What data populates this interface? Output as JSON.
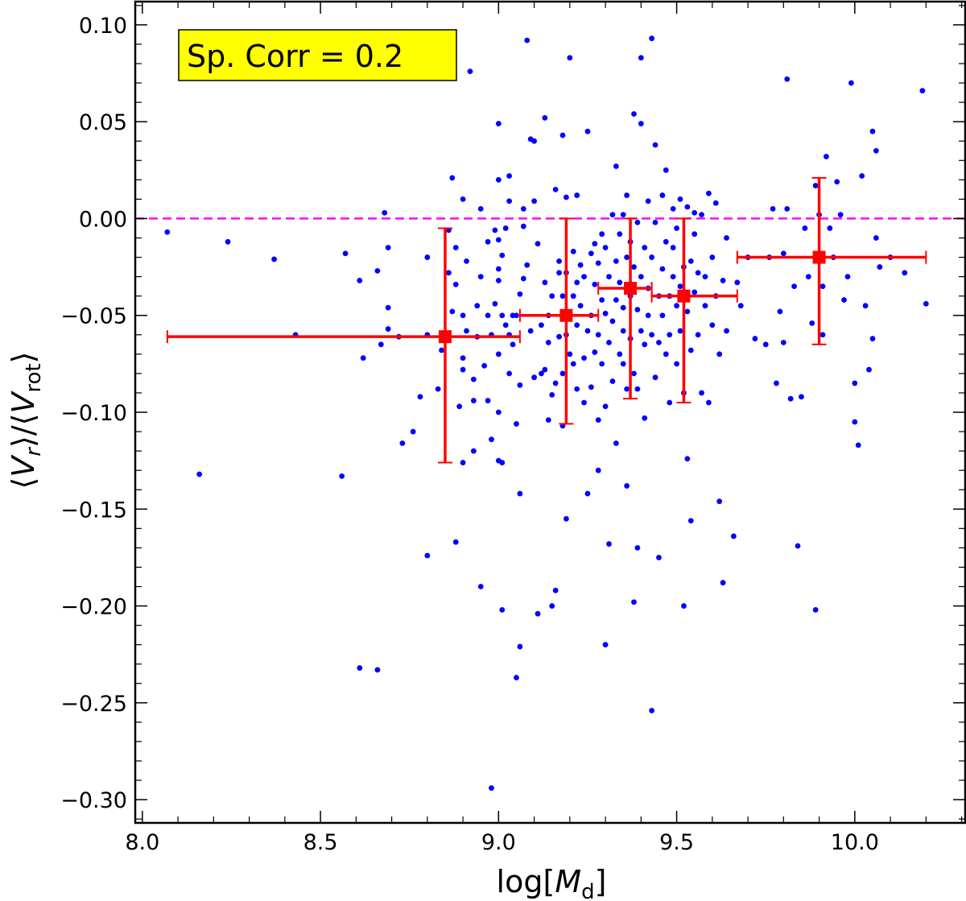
{
  "chart_data": {
    "type": "scatter",
    "xlabel_main": "log[",
    "xlabel_var": "M",
    "xlabel_sub": "d",
    "xlabel_end": "]",
    "ylabel_open": "⟨",
    "ylabel_var1": "V",
    "ylabel_sub1": "r",
    "ylabel_mid": "⟩/⟨",
    "ylabel_var2": "V",
    "ylabel_sub2": "rot",
    "ylabel_close": "⟩",
    "xlim": [
      7.98,
      10.31
    ],
    "ylim": [
      -0.312,
      0.112
    ],
    "xticks": [
      {
        "value": 8.0,
        "label": "8.0"
      },
      {
        "value": 8.5,
        "label": "8.5"
      },
      {
        "value": 9.0,
        "label": "9.0"
      },
      {
        "value": 9.5,
        "label": "9.5"
      },
      {
        "value": 10.0,
        "label": "10.0"
      }
    ],
    "yticks": [
      {
        "value": 0.1,
        "label": "0.10"
      },
      {
        "value": 0.05,
        "label": "0.05"
      },
      {
        "value": 0.0,
        "label": "0.00"
      },
      {
        "value": -0.05,
        "label": "−0.05"
      },
      {
        "value": -0.1,
        "label": "−0.10"
      },
      {
        "value": -0.15,
        "label": "−0.15"
      },
      {
        "value": -0.2,
        "label": "−0.20"
      },
      {
        "value": -0.25,
        "label": "−0.25"
      },
      {
        "value": -0.3,
        "label": "−0.30"
      }
    ],
    "annotation": "Sp. Corr = 0.2",
    "reference_line": {
      "y": 0.0,
      "color": "#ff00ff",
      "style": "dashed"
    },
    "colors": {
      "points": "#0000ff",
      "binned": "#ff0000",
      "annotation_bg": "#ffff00"
    },
    "binned": [
      {
        "x": 8.85,
        "y": -0.061,
        "xerr_low": 8.07,
        "xerr_high": 9.06,
        "yerr_low": -0.126,
        "yerr_high": -0.005
      },
      {
        "x": 9.19,
        "y": -0.05,
        "xerr_low": 9.06,
        "xerr_high": 9.28,
        "yerr_low": -0.106,
        "yerr_high": 0.0
      },
      {
        "x": 9.37,
        "y": -0.036,
        "xerr_low": 9.28,
        "xerr_high": 9.43,
        "yerr_low": -0.093,
        "yerr_high": 0.0
      },
      {
        "x": 9.52,
        "y": -0.04,
        "xerr_low": 9.43,
        "xerr_high": 9.67,
        "yerr_low": -0.095,
        "yerr_high": 0.0
      },
      {
        "x": 9.9,
        "y": -0.02,
        "xerr_low": 9.67,
        "xerr_high": 10.2,
        "yerr_low": -0.065,
        "yerr_high": 0.021
      }
    ],
    "points": [
      [
        8.07,
        -0.007
      ],
      [
        8.16,
        -0.132
      ],
      [
        8.24,
        -0.012
      ],
      [
        8.37,
        -0.021
      ],
      [
        8.43,
        -0.06
      ],
      [
        8.56,
        -0.133
      ],
      [
        8.57,
        -0.018
      ],
      [
        8.61,
        -0.032
      ],
      [
        8.61,
        -0.232
      ],
      [
        8.62,
        -0.072
      ],
      [
        8.66,
        -0.233
      ],
      [
        8.66,
        -0.027
      ],
      [
        8.67,
        -0.065
      ],
      [
        8.68,
        0.003
      ],
      [
        8.69,
        -0.015
      ],
      [
        8.69,
        -0.057
      ],
      [
        8.69,
        -0.046
      ],
      [
        8.72,
        -0.061
      ],
      [
        8.73,
        -0.116
      ],
      [
        8.76,
        -0.11
      ],
      [
        8.78,
        -0.092
      ],
      [
        8.8,
        -0.06
      ],
      [
        8.8,
        -0.174
      ],
      [
        8.8,
        -0.02
      ],
      [
        8.83,
        -0.088
      ],
      [
        8.84,
        -0.068
      ],
      [
        8.86,
        -0.006
      ],
      [
        8.86,
        -0.028
      ],
      [
        8.87,
        0.021
      ],
      [
        8.87,
        -0.048
      ],
      [
        8.88,
        -0.015
      ],
      [
        8.88,
        -0.034
      ],
      [
        8.88,
        -0.167
      ],
      [
        8.89,
        -0.097
      ],
      [
        8.9,
        -0.078
      ],
      [
        8.9,
        -0.072
      ],
      [
        8.9,
        -0.126
      ],
      [
        8.9,
        -0.05
      ],
      [
        8.9,
        0.01
      ],
      [
        8.91,
        -0.058
      ],
      [
        8.91,
        -0.022
      ],
      [
        8.92,
        0.076
      ],
      [
        8.93,
        -0.083
      ],
      [
        8.93,
        -0.094
      ],
      [
        8.93,
        -0.12
      ],
      [
        8.94,
        -0.045
      ],
      [
        8.94,
        -0.061
      ],
      [
        8.95,
        0.005
      ],
      [
        8.95,
        -0.03
      ],
      [
        8.95,
        -0.19
      ],
      [
        8.96,
        -0.076
      ],
      [
        8.97,
        -0.012
      ],
      [
        8.97,
        -0.094
      ],
      [
        8.97,
        -0.05
      ],
      [
        8.98,
        -0.294
      ],
      [
        8.98,
        -0.114
      ],
      [
        8.98,
        -0.06
      ],
      [
        8.99,
        -0.006
      ],
      [
        8.99,
        -0.044
      ],
      [
        9.0,
        -0.032
      ],
      [
        9.0,
        -0.011
      ],
      [
        9.0,
        -0.026
      ],
      [
        9.0,
        -0.1
      ],
      [
        9.0,
        0.049
      ],
      [
        9.0,
        0.02
      ],
      [
        9.0,
        -0.07
      ],
      [
        9.0,
        -0.125
      ],
      [
        9.01,
        -0.202
      ],
      [
        9.01,
        -0.05
      ],
      [
        9.01,
        -0.019
      ],
      [
        9.01,
        -0.126
      ],
      [
        9.02,
        -0.005
      ],
      [
        9.02,
        -0.055
      ],
      [
        9.03,
        0.009
      ],
      [
        9.03,
        -0.08
      ],
      [
        9.03,
        -0.06
      ],
      [
        9.03,
        0.022
      ],
      [
        9.04,
        -0.05
      ],
      [
        9.04,
        -0.065
      ],
      [
        9.05,
        -0.106
      ],
      [
        9.05,
        -0.237
      ],
      [
        9.05,
        -0.05
      ],
      [
        9.06,
        -0.221
      ],
      [
        9.06,
        -0.142
      ],
      [
        9.06,
        -0.086
      ],
      [
        9.06,
        -0.039
      ],
      [
        9.07,
        0.005
      ],
      [
        9.07,
        -0.004
      ],
      [
        9.07,
        -0.031
      ],
      [
        9.08,
        0.092
      ],
      [
        9.08,
        -0.024
      ],
      [
        9.09,
        0.041
      ],
      [
        9.09,
        -0.058
      ],
      [
        9.1,
        0.04
      ],
      [
        9.1,
        0.009
      ],
      [
        9.1,
        -0.082
      ],
      [
        9.11,
        -0.204
      ],
      [
        9.11,
        -0.013
      ],
      [
        9.12,
        -0.055
      ],
      [
        9.12,
        -0.08
      ],
      [
        9.13,
        0.052
      ],
      [
        9.13,
        -0.078
      ],
      [
        9.13,
        -0.033
      ],
      [
        9.14,
        -0.05
      ],
      [
        9.14,
        -0.064
      ],
      [
        9.14,
        -0.104
      ],
      [
        9.15,
        -0.091
      ],
      [
        9.15,
        -0.2
      ],
      [
        9.15,
        -0.04
      ],
      [
        9.16,
        0.015
      ],
      [
        9.16,
        -0.192
      ],
      [
        9.16,
        -0.085
      ],
      [
        9.17,
        -0.061
      ],
      [
        9.17,
        -0.022
      ],
      [
        9.17,
        -0.028
      ],
      [
        9.18,
        0.043
      ],
      [
        9.18,
        -0.107
      ],
      [
        9.18,
        -0.04
      ],
      [
        9.18,
        -0.08
      ],
      [
        9.19,
        0.011
      ],
      [
        9.19,
        -0.06
      ],
      [
        9.19,
        -0.028
      ],
      [
        9.19,
        -0.155
      ],
      [
        9.2,
        0.083
      ],
      [
        9.2,
        -0.07
      ],
      [
        9.21,
        -0.075
      ],
      [
        9.21,
        -0.04
      ],
      [
        9.21,
        -0.017
      ],
      [
        9.22,
        -0.033
      ],
      [
        9.22,
        -0.088
      ],
      [
        9.22,
        -0.055
      ],
      [
        9.22,
        0.012
      ],
      [
        9.23,
        -0.024
      ],
      [
        9.23,
        -0.045
      ],
      [
        9.24,
        -0.072
      ],
      [
        9.24,
        -0.03
      ],
      [
        9.24,
        -0.095
      ],
      [
        9.25,
        0.045
      ],
      [
        9.25,
        -0.142
      ],
      [
        9.25,
        -0.058
      ],
      [
        9.26,
        -0.018
      ],
      [
        9.26,
        -0.05
      ],
      [
        9.26,
        -0.087
      ],
      [
        9.27,
        -0.069
      ],
      [
        9.27,
        -0.034
      ],
      [
        9.27,
        -0.013
      ],
      [
        9.28,
        -0.06
      ],
      [
        9.28,
        -0.023
      ],
      [
        9.28,
        -0.104
      ],
      [
        9.28,
        -0.13
      ],
      [
        9.29,
        -0.042
      ],
      [
        9.29,
        -0.075
      ],
      [
        9.29,
        -0.008
      ],
      [
        9.3,
        -0.097
      ],
      [
        9.3,
        -0.049
      ],
      [
        9.3,
        -0.015
      ],
      [
        9.3,
        -0.22
      ],
      [
        9.31,
        -0.064
      ],
      [
        9.31,
        -0.03
      ],
      [
        9.31,
        -0.168
      ],
      [
        9.32,
        0.002
      ],
      [
        9.32,
        -0.084
      ],
      [
        9.32,
        -0.053
      ],
      [
        9.33,
        0.027
      ],
      [
        9.33,
        -0.022
      ],
      [
        9.33,
        -0.042
      ],
      [
        9.33,
        -0.116
      ],
      [
        9.34,
        -0.07
      ],
      [
        9.34,
        -0.008
      ],
      [
        9.34,
        -0.033
      ],
      [
        9.35,
        0.002
      ],
      [
        9.35,
        -0.058
      ],
      [
        9.35,
        -0.075
      ],
      [
        9.35,
        -0.046
      ],
      [
        9.36,
        0.012
      ],
      [
        9.36,
        -0.02
      ],
      [
        9.36,
        -0.088
      ],
      [
        9.36,
        -0.138
      ],
      [
        9.37,
        -0.04
      ],
      [
        9.37,
        -0.062
      ],
      [
        9.37,
        -0.012
      ],
      [
        9.38,
        0.054
      ],
      [
        9.38,
        -0.025
      ],
      [
        9.38,
        -0.08
      ],
      [
        9.38,
        -0.198
      ],
      [
        9.39,
        -0.002
      ],
      [
        9.39,
        -0.047
      ],
      [
        9.39,
        -0.17
      ],
      [
        9.39,
        -0.088
      ],
      [
        9.4,
        0.083
      ],
      [
        9.4,
        -0.03
      ],
      [
        9.4,
        -0.058
      ],
      [
        9.4,
        0.049
      ],
      [
        9.41,
        -0.015
      ],
      [
        9.41,
        -0.065
      ],
      [
        9.41,
        -0.103
      ],
      [
        9.42,
        0.009
      ],
      [
        9.42,
        -0.036
      ],
      [
        9.42,
        -0.05
      ],
      [
        9.43,
        0.093
      ],
      [
        9.43,
        -0.254
      ],
      [
        9.43,
        -0.06
      ],
      [
        9.43,
        -0.02
      ],
      [
        9.44,
        0.038
      ],
      [
        9.44,
        -0.082
      ],
      [
        9.44,
        -0.002
      ],
      [
        9.45,
        -0.064
      ],
      [
        9.45,
        -0.04
      ],
      [
        9.45,
        -0.175
      ],
      [
        9.46,
        0.012
      ],
      [
        9.46,
        -0.026
      ],
      [
        9.46,
        -0.05
      ],
      [
        9.47,
        0.025
      ],
      [
        9.47,
        -0.07
      ],
      [
        9.47,
        -0.012
      ],
      [
        9.48,
        -0.04
      ],
      [
        9.48,
        -0.095
      ],
      [
        9.48,
        -0.06
      ],
      [
        9.49,
        0.005
      ],
      [
        9.49,
        -0.03
      ],
      [
        9.49,
        -0.015
      ],
      [
        9.5,
        -0.045
      ],
      [
        9.5,
        -0.075
      ],
      [
        9.5,
        -0.005
      ],
      [
        9.51,
        0.01
      ],
      [
        9.51,
        -0.035
      ],
      [
        9.51,
        -0.058
      ],
      [
        9.52,
        -0.2
      ],
      [
        9.52,
        -0.025
      ],
      [
        9.52,
        -0.09
      ],
      [
        9.53,
        0.006
      ],
      [
        9.53,
        -0.124
      ],
      [
        9.53,
        -0.048
      ],
      [
        9.54,
        -0.068
      ],
      [
        9.54,
        -0.022
      ],
      [
        9.54,
        -0.156
      ],
      [
        9.55,
        0.003
      ],
      [
        9.55,
        -0.038
      ],
      [
        9.55,
        -0.008
      ],
      [
        9.56,
        -0.06
      ],
      [
        9.56,
        -0.028
      ],
      [
        9.57,
        -0.09
      ],
      [
        9.57,
        0.002
      ],
      [
        9.58,
        -0.045
      ],
      [
        9.58,
        -0.03
      ],
      [
        9.59,
        0.013
      ],
      [
        9.59,
        -0.095
      ],
      [
        9.6,
        -0.055
      ],
      [
        9.6,
        -0.02
      ],
      [
        9.61,
        0.008
      ],
      [
        9.61,
        -0.04
      ],
      [
        9.62,
        -0.07
      ],
      [
        9.62,
        -0.146
      ],
      [
        9.63,
        -0.188
      ],
      [
        9.63,
        -0.032
      ],
      [
        9.64,
        -0.058
      ],
      [
        9.64,
        -0.01
      ],
      [
        9.66,
        -0.164
      ],
      [
        9.67,
        -0.033
      ],
      [
        9.68,
        -0.045
      ],
      [
        9.7,
        -0.02
      ],
      [
        9.72,
        -0.062
      ],
      [
        9.75,
        -0.065
      ],
      [
        9.76,
        -0.02
      ],
      [
        9.77,
        0.005
      ],
      [
        9.78,
        -0.085
      ],
      [
        9.79,
        -0.048
      ],
      [
        9.8,
        -0.018
      ],
      [
        9.8,
        -0.064
      ],
      [
        9.81,
        0.005
      ],
      [
        9.81,
        0.072
      ],
      [
        9.82,
        -0.093
      ],
      [
        9.83,
        -0.035
      ],
      [
        9.84,
        -0.169
      ],
      [
        9.85,
        -0.092
      ],
      [
        9.86,
        -0.005
      ],
      [
        9.87,
        -0.03
      ],
      [
        9.88,
        -0.054
      ],
      [
        9.89,
        0.017
      ],
      [
        9.89,
        -0.202
      ],
      [
        9.9,
        0.002
      ],
      [
        9.9,
        -0.018
      ],
      [
        9.91,
        -0.035
      ],
      [
        9.91,
        -0.06
      ],
      [
        9.92,
        0.032
      ],
      [
        9.93,
        -0.005
      ],
      [
        9.94,
        -0.02
      ],
      [
        9.95,
        0.019
      ],
      [
        9.96,
        0.002
      ],
      [
        9.97,
        -0.042
      ],
      [
        9.98,
        -0.03
      ],
      [
        9.99,
        0.07
      ],
      [
        10.0,
        -0.085
      ],
      [
        10.0,
        -0.105
      ],
      [
        10.01,
        -0.117
      ],
      [
        10.02,
        0.022
      ],
      [
        10.03,
        -0.045
      ],
      [
        10.04,
        -0.078
      ],
      [
        10.05,
        -0.062
      ],
      [
        10.05,
        0.045
      ],
      [
        10.06,
        0.035
      ],
      [
        10.06,
        -0.01
      ],
      [
        10.07,
        -0.025
      ],
      [
        10.1,
        -0.02
      ],
      [
        10.14,
        -0.028
      ],
      [
        10.19,
        0.066
      ],
      [
        10.2,
        -0.044
      ]
    ]
  }
}
